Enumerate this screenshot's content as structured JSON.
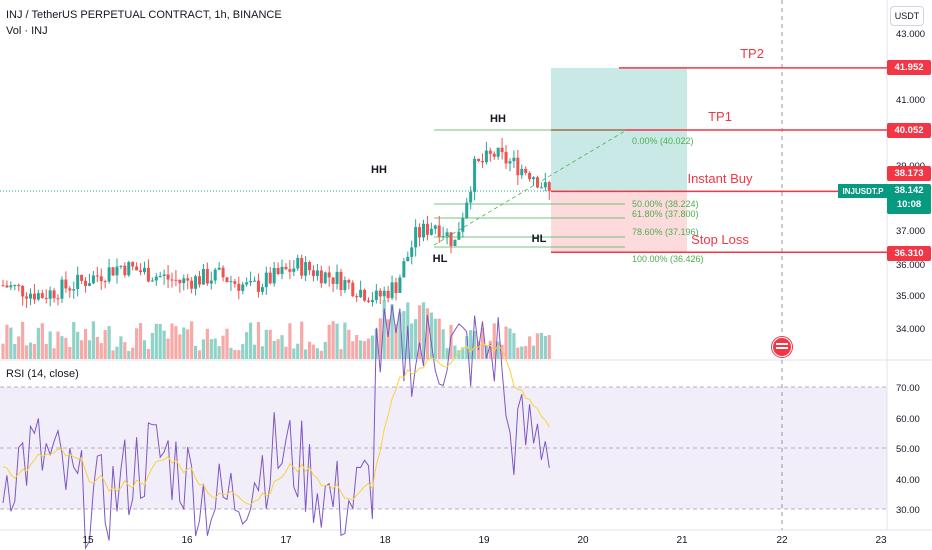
{
  "header": {
    "title": "INJ / TetherUS PERPETUAL CONTRACT, 1h, BINANCE",
    "volume_label": "Vol · INJ"
  },
  "currency_button": "USDT",
  "colors": {
    "bull": "#26a69a",
    "bear": "#ef5350",
    "target": "#f23645",
    "fib": "#4caf50",
    "rsi_line": "#7e57c2",
    "rsi_ma": "#f7d33c",
    "rsi_band": "#ede7f6"
  },
  "price_axis": {
    "ticks": [
      "43.000",
      "41.000",
      "39.000",
      "37.000",
      "36.000",
      "35.000",
      "34.000"
    ],
    "tags": {
      "tp2": "41.952",
      "tp1": "40.052",
      "upper": "38.173",
      "current": "38.142",
      "countdown": "10:08",
      "stop": "36.310"
    },
    "symbol_tag": "INJUSDT.P"
  },
  "annotations": {
    "tp2": "TP2",
    "tp1": "TP1",
    "instant_buy": "Instant Buy",
    "stop_loss": "Stop Loss",
    "hh1": "HH",
    "hh2": "HH",
    "hl1": "HL",
    "hl2": "HL"
  },
  "fib_levels": [
    {
      "label": "0.00% (40.022)"
    },
    {
      "label": "50.00% (38.224)"
    },
    {
      "label": "61.80% (37.800)"
    },
    {
      "label": "78.60% (37.196)"
    },
    {
      "label": "100.00% (36.426)"
    }
  ],
  "rsi": {
    "label": "RSI (14, close)",
    "ticks": [
      "70.00",
      "60.00",
      "50.00",
      "40.00",
      "30.00"
    ]
  },
  "time_axis": [
    "15",
    "16",
    "17",
    "18",
    "19",
    "20",
    "21",
    "22",
    "23"
  ]
}
